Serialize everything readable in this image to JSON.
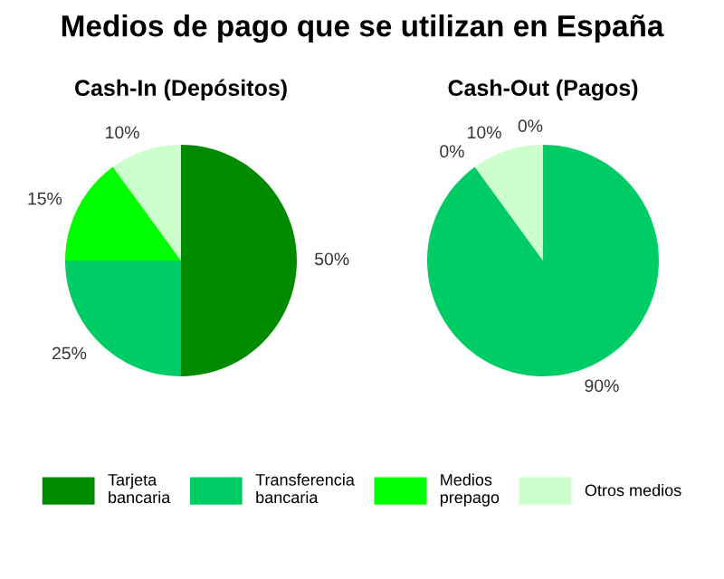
{
  "chart_data": [
    {
      "type": "pie",
      "title": "Medios de pago que se utilizan en España",
      "subtitle": "Cash-In (Depósitos)",
      "categories": [
        "Tarjeta\nbancaria",
        "Transferencia\nbancaria",
        "Medios\nprepago",
        "Otros medios"
      ],
      "values": [
        50,
        25,
        15,
        10
      ],
      "colors": [
        "#008a00",
        "#00cc66",
        "#00ff00",
        "#ccffcc"
      ],
      "value_labels": [
        "50%",
        "25%",
        "15%",
        "10%"
      ],
      "legend": "bottom"
    },
    {
      "type": "pie",
      "subtitle": "Cash-Out (Pagos)",
      "categories": [
        null,
        null,
        null,
        null
      ],
      "values": [
        0,
        90,
        0,
        10
      ],
      "colors": [
        "#008a00",
        "#00cc66",
        "#00ff00",
        "#ccffcc"
      ],
      "value_labels": [
        "0%",
        "90%",
        "0%",
        "10%"
      ]
    }
  ]
}
